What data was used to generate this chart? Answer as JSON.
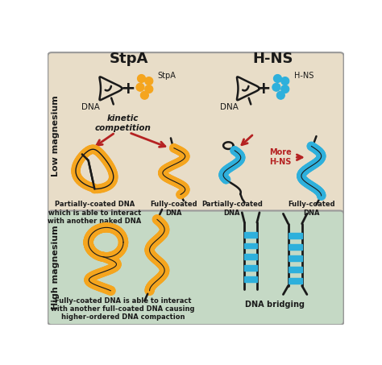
{
  "title_stpa": "StpA",
  "title_hns": "H-NS",
  "label_low_mg": "Low magnesium",
  "label_high_mg": "High magnesium",
  "label_dna": "DNA",
  "label_stpa": "StpA",
  "label_hns": "H-NS",
  "label_kinetic": "kinetic\ncompetition",
  "label_more_hns": "More\nH-NS",
  "label_partial_stpa": "Partially-coated DNA\nwhich is able to interact\nwith another naked DNA",
  "label_full_stpa": "Fully-coated\nDNA",
  "label_partial_hns": "Partially-coated\nDNA",
  "label_full_hns": "Fully-coated\nDNA",
  "label_high_stpa": "Fully-coated DNA is able to interact\nwith another full-coated DNA causing\nhigher-ordered DNA compaction",
  "label_dna_bridging": "DNA bridging",
  "color_orange": "#F5A51E",
  "color_blue": "#2EB0DC",
  "color_dark": "#1a1a1a",
  "color_red": "#B52222",
  "color_low_bg": "#E8DDC8",
  "color_high_bg": "#C5D9C5",
  "color_border": "#999999",
  "fig_bg": "#FFFFFF"
}
